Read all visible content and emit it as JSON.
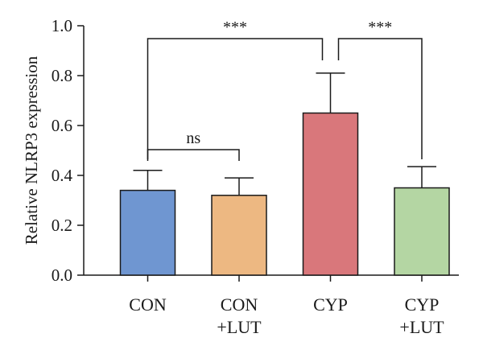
{
  "chart_data": {
    "type": "bar",
    "title": "",
    "xlabel": "",
    "ylabel": "Relative NLRP3 expression",
    "ylim": [
      0,
      1.0
    ],
    "yticks": [
      "0.0",
      "0.2",
      "0.4",
      "0.6",
      "0.8",
      "1.0"
    ],
    "grid": false,
    "categories": [
      {
        "lines": [
          "CON"
        ]
      },
      {
        "lines": [
          "CON",
          "+LUT"
        ]
      },
      {
        "lines": [
          "CYP"
        ]
      },
      {
        "lines": [
          "CYP",
          "+LUT"
        ]
      }
    ],
    "values": [
      0.34,
      0.32,
      0.65,
      0.35
    ],
    "errors": [
      0.08,
      0.07,
      0.16,
      0.085
    ],
    "colors": [
      "#6f96d1",
      "#edb882",
      "#d9777b",
      "#b4d6a3"
    ],
    "significance": [
      {
        "from": 0,
        "to": 1,
        "label": "ns"
      },
      {
        "from": 0,
        "to": 2,
        "label": "***"
      },
      {
        "from": 2,
        "to": 3,
        "label": "***"
      }
    ]
  }
}
